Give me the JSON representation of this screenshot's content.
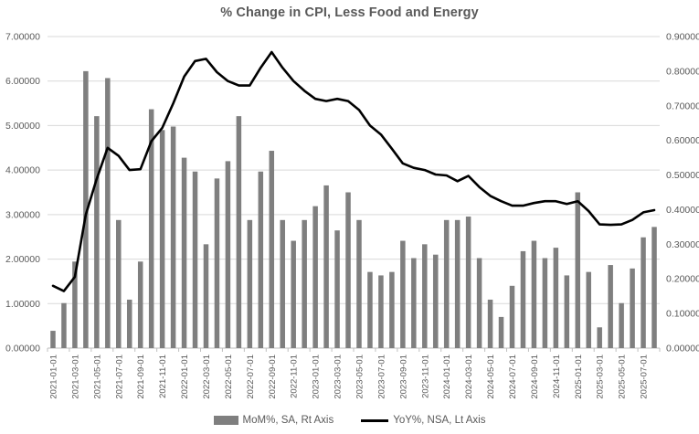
{
  "chart_data": {
    "type": "bar-line-combo",
    "title": "% Change in CPI, Less Food and Energy",
    "categories": [
      "2021-01-01",
      "2021-02-01",
      "2021-03-01",
      "2021-04-01",
      "2021-05-01",
      "2021-06-01",
      "2021-07-01",
      "2021-08-01",
      "2021-09-01",
      "2021-10-01",
      "2021-11-01",
      "2021-12-01",
      "2022-01-01",
      "2022-02-01",
      "2022-03-01",
      "2022-04-01",
      "2022-05-01",
      "2022-06-01",
      "2022-07-01",
      "2022-08-01",
      "2022-09-01",
      "2022-10-01",
      "2022-11-01",
      "2022-12-01",
      "2023-01-01",
      "2023-02-01",
      "2023-03-01",
      "2023-04-01",
      "2023-05-01",
      "2023-06-01",
      "2023-07-01",
      "2023-08-01",
      "2023-09-01",
      "2023-10-01",
      "2023-11-01",
      "2023-12-01",
      "2024-01-01",
      "2024-02-01",
      "2024-03-01",
      "2024-04-01",
      "2024-05-01",
      "2024-06-01",
      "2024-07-01",
      "2024-08-01",
      "2024-09-01",
      "2024-10-01",
      "2024-11-01",
      "2024-12-01",
      "2025-01-01",
      "2025-02-01",
      "2025-03-01",
      "2025-04-01",
      "2025-05-01",
      "2025-06-01",
      "2025-07-01",
      "2025-08-01"
    ],
    "x_tick_step": 2,
    "series": [
      {
        "name": "MoM%, SA, Rt Axis",
        "type": "bar",
        "axis": "right",
        "color": "#7f7f7f",
        "values": [
          0.05,
          0.13,
          0.25,
          0.8,
          0.67,
          0.78,
          0.37,
          0.14,
          0.25,
          0.69,
          0.63,
          0.64,
          0.55,
          0.51,
          0.3,
          0.49,
          0.54,
          0.67,
          0.37,
          0.51,
          0.57,
          0.37,
          0.31,
          0.37,
          0.41,
          0.47,
          0.34,
          0.45,
          0.37,
          0.22,
          0.21,
          0.22,
          0.31,
          0.26,
          0.3,
          0.27,
          0.37,
          0.37,
          0.38,
          0.26,
          0.14,
          0.09,
          0.18,
          0.28,
          0.31,
          0.26,
          0.29,
          0.21,
          0.45,
          0.22,
          0.06,
          0.24,
          0.13,
          0.23,
          0.32,
          0.35
        ]
      },
      {
        "name": "YoY%, NSA, Lt Axis",
        "type": "line",
        "axis": "left",
        "color": "#000000",
        "values": [
          1.4,
          1.28,
          1.6,
          3.0,
          3.8,
          4.5,
          4.32,
          4.0,
          4.02,
          4.65,
          4.95,
          5.5,
          6.1,
          6.45,
          6.5,
          6.2,
          6.0,
          5.9,
          5.9,
          6.3,
          6.65,
          6.3,
          6.0,
          5.78,
          5.6,
          5.55,
          5.6,
          5.55,
          5.35,
          5.0,
          4.8,
          4.48,
          4.15,
          4.05,
          4.0,
          3.9,
          3.88,
          3.75,
          3.87,
          3.62,
          3.42,
          3.3,
          3.2,
          3.2,
          3.26,
          3.3,
          3.3,
          3.24,
          3.3,
          3.08,
          2.78,
          2.77,
          2.78,
          2.88,
          3.05,
          3.1
        ]
      }
    ],
    "left_axis": {
      "min": 0,
      "max": 7,
      "labels": [
        "7.00000",
        "6.00000",
        "5.00000",
        "4.00000",
        "3.00000",
        "2.00000",
        "1.00000",
        "0.00000"
      ]
    },
    "right_axis": {
      "min": 0,
      "max": 0.9,
      "labels": [
        "0.90000",
        "0.80000",
        "0.70000",
        "0.60000",
        "0.50000",
        "0.40000",
        "0.30000",
        "0.20000",
        "0.10000",
        "0.00000"
      ]
    },
    "grid": "horizontal",
    "legend_position": "bottom"
  },
  "legend": {
    "mom_label": "MoM%, SA, Rt Axis",
    "yoy_label": "YoY%, NSA, Lt Axis"
  },
  "colors": {
    "bar": "#7f7f7f",
    "line": "#000000",
    "gridline": "#d9d9d9",
    "axis_line": "#bfbfbf",
    "axis_text": "#595959",
    "title_text": "#595959",
    "background": "#ffffff"
  }
}
